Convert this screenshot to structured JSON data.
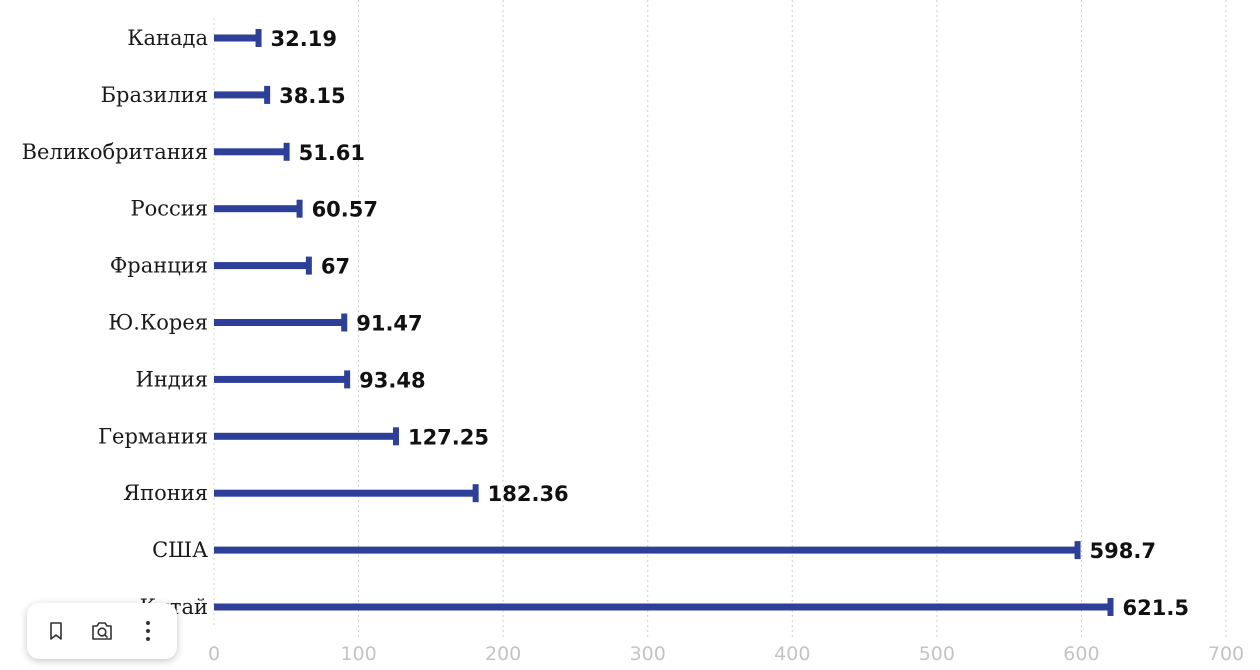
{
  "chart_data": {
    "type": "bar",
    "orientation": "horizontal",
    "categories": [
      "Канада",
      "Бразилия",
      "Великобритания",
      "Россия",
      "Франция",
      "Ю.Корея",
      "Индия",
      "Германия",
      "Япония",
      "США",
      "Китай"
    ],
    "values": [
      32.19,
      38.15,
      51.61,
      60.57,
      67,
      91.47,
      93.48,
      127.25,
      182.36,
      598.7,
      621.5
    ],
    "value_labels": [
      "32.19",
      "38.15",
      "51.61",
      "60.57",
      "67",
      "91.47",
      "93.48",
      "127.25",
      "182.36",
      "598.7",
      "621.5"
    ],
    "x_ticks": [
      "0",
      "100",
      "200",
      "300",
      "400",
      "500",
      "600",
      "700"
    ],
    "xlim": [
      0,
      700
    ],
    "grid": "vertical dotted",
    "bar_color": "#2d3f98",
    "title": "",
    "xlabel": "",
    "ylabel": ""
  },
  "toolbar": {
    "items": [
      {
        "name": "bookmark-icon"
      },
      {
        "name": "camera-search-icon"
      },
      {
        "name": "more-vertical-icon"
      }
    ]
  }
}
